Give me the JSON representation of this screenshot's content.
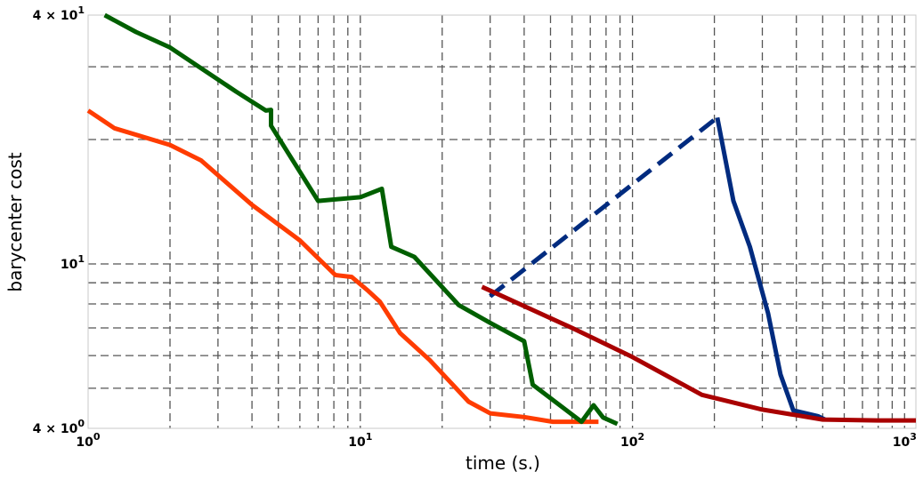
{
  "chart_data": {
    "type": "line",
    "title": "",
    "xlabel": "time (s.)",
    "ylabel": "barycenter cost",
    "xscale": "log",
    "yscale": "log",
    "xlim": [
      1,
      1100
    ],
    "ylim": [
      4,
      40
    ],
    "grid": true,
    "legend": "none",
    "x_ticks": [
      {
        "value": 1,
        "base": "10",
        "exp": "0"
      },
      {
        "value": 10,
        "base": "10",
        "exp": "1"
      },
      {
        "value": 100,
        "base": "10",
        "exp": "2"
      },
      {
        "value": 1000,
        "base": "10",
        "exp": "3"
      }
    ],
    "y_ticks": [
      {
        "value": 4,
        "base": "4 × 10",
        "exp": "0"
      },
      {
        "value": 10,
        "base": "10",
        "exp": "1"
      },
      {
        "value": 40,
        "base": "4 × 10",
        "exp": "1"
      }
    ],
    "series": [
      {
        "color": "#ff3c00",
        "dashed": false,
        "points": [
          [
            1.0,
            23.5
          ],
          [
            1.25,
            21.3
          ],
          [
            2.0,
            19.4
          ],
          [
            2.6,
            17.8
          ],
          [
            4.0,
            13.9
          ],
          [
            6.0,
            11.4
          ],
          [
            8.1,
            9.4
          ],
          [
            9.3,
            9.3
          ],
          [
            10.7,
            8.6
          ],
          [
            11.8,
            8.1
          ],
          [
            14.0,
            6.8
          ],
          [
            18.0,
            5.85
          ],
          [
            25.0,
            4.64
          ],
          [
            30.0,
            4.35
          ],
          [
            35.0,
            4.3
          ],
          [
            40.0,
            4.26
          ],
          [
            51.0,
            4.15
          ],
          [
            75.0,
            4.15
          ]
        ]
      },
      {
        "color": "#005f00",
        "dashed": false,
        "points": [
          [
            1.15,
            40.0
          ],
          [
            1.5,
            36.4
          ],
          [
            2.0,
            33.4
          ],
          [
            3.5,
            26.1
          ],
          [
            4.5,
            23.5
          ],
          [
            4.7,
            23.6
          ],
          [
            4.7,
            21.6
          ],
          [
            7.0,
            14.2
          ],
          [
            10.0,
            14.5
          ],
          [
            12.0,
            15.2
          ],
          [
            13.0,
            11.0
          ],
          [
            15.8,
            10.4
          ],
          [
            23.0,
            7.95
          ],
          [
            30.0,
            7.2
          ],
          [
            40.0,
            6.5
          ],
          [
            43.0,
            5.1
          ],
          [
            65.0,
            4.15
          ],
          [
            72.0,
            4.55
          ],
          [
            78.0,
            4.25
          ],
          [
            88.0,
            4.1
          ]
        ]
      },
      {
        "color": "#002b7f",
        "dashed": true,
        "points": [
          [
            30.0,
            8.35
          ],
          [
            205.0,
            22.6
          ]
        ]
      },
      {
        "color": "#002b7f",
        "dashed": false,
        "points": [
          [
            205.0,
            22.6
          ],
          [
            235.0,
            14.2
          ],
          [
            270.0,
            11.0
          ],
          [
            315.0,
            7.6
          ],
          [
            350.0,
            5.4
          ],
          [
            390.0,
            4.42
          ],
          [
            480.0,
            4.28
          ],
          [
            510.0,
            4.2
          ]
        ]
      },
      {
        "color": "#a90000",
        "dashed": false,
        "points": [
          [
            28.0,
            8.8
          ],
          [
            60.0,
            7.0
          ],
          [
            100.0,
            5.95
          ],
          [
            180.0,
            4.82
          ],
          [
            300.0,
            4.44
          ],
          [
            500.0,
            4.2
          ],
          [
            800.0,
            4.18
          ],
          [
            1100.0,
            4.18
          ]
        ]
      }
    ]
  }
}
